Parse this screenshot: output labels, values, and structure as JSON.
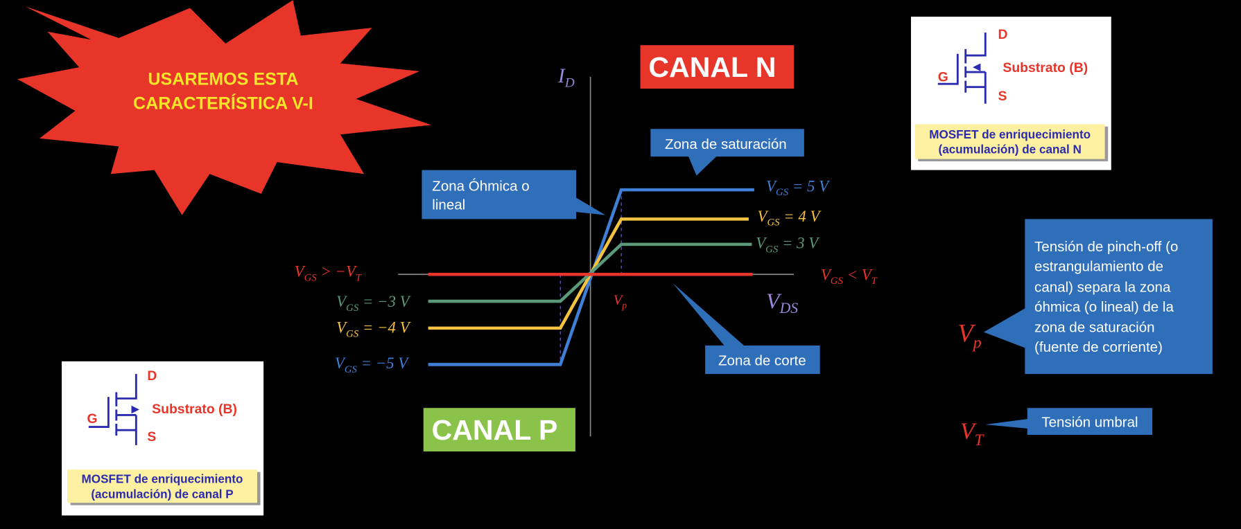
{
  "burst": {
    "lines": [
      "USAREMOS ESTA",
      "CARACTERÍSTICA V-I"
    ]
  },
  "canal_n": "CANAL N",
  "canal_p": "CANAL P",
  "axes": {
    "y": {
      "main": "I",
      "sub": "D"
    },
    "x": {
      "main": "V",
      "sub": "DS"
    }
  },
  "curve_labels": [
    {
      "main": "V",
      "sub": "GS",
      "rest": " = 5 V"
    },
    {
      "main": "V",
      "sub": "GS",
      "rest": " = 4 V"
    },
    {
      "main": "V",
      "sub": "GS",
      "rest": " = 3 V"
    },
    {
      "main": "V",
      "sub": "GS",
      "rest": " = −3 V"
    },
    {
      "main": "V",
      "sub": "GS",
      "rest": " = −4 V"
    },
    {
      "main": "V",
      "sub": "GS",
      "rest": " = −5 V"
    },
    {
      "main": "V",
      "sub": "GS",
      "rest": " >  −V",
      "sub2": "T"
    },
    {
      "main": "V",
      "sub": "GS",
      "rest": " <  V",
      "sub2": "T"
    }
  ],
  "vp_axis_label": {
    "main": "V",
    "sub": "p"
  },
  "callouts": {
    "saturacion": "Zona de saturación",
    "ohmica": [
      "Zona Óhmica o",
      "lineal"
    ],
    "corte": "Zona de corte",
    "pinch_off": [
      "Tensión de pinch-off (o",
      "estrangulamiento de",
      "canal) separa la zona",
      "óhmica (o lineal) de la",
      "zona de saturación",
      "(fuente de corriente)"
    ],
    "umbral": "Tensión umbral"
  },
  "legend_symbols": {
    "vp": {
      "main": "V",
      "sub": "p"
    },
    "vt": {
      "main": "V",
      "sub": "T"
    }
  },
  "mosfet_n": {
    "d": "D",
    "g": "G",
    "s": "S",
    "substrate": "Substrato (B)",
    "caption": [
      "MOSFET de enriquecimiento",
      "(acumulación) de canal N"
    ]
  },
  "mosfet_p": {
    "d": "D",
    "g": "G",
    "s": "S",
    "substrate": "Substrato (B)",
    "caption": [
      "MOSFET de enriquecimiento",
      "(acumulación) de canal P"
    ]
  }
}
